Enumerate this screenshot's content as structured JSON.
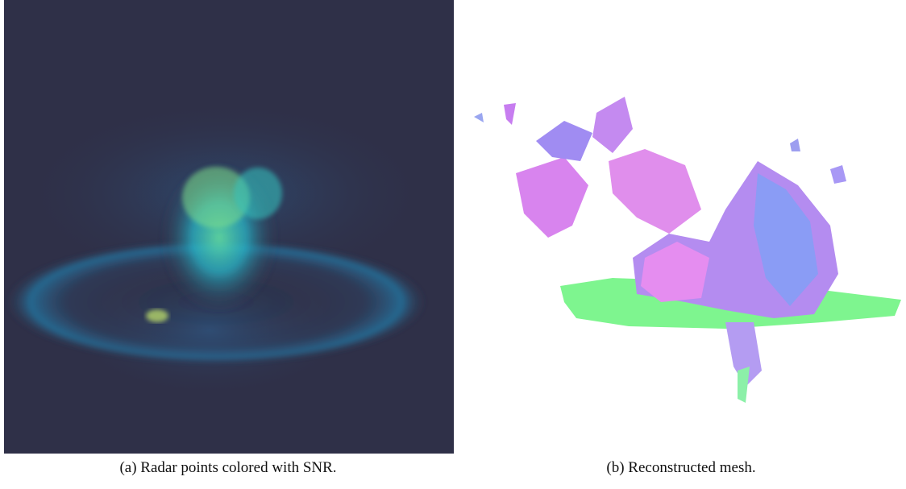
{
  "figure": {
    "panels": [
      {
        "caption": "(a) Radar points colored with SNR."
      },
      {
        "caption": "(b) Reconstructed mesh."
      }
    ]
  }
}
